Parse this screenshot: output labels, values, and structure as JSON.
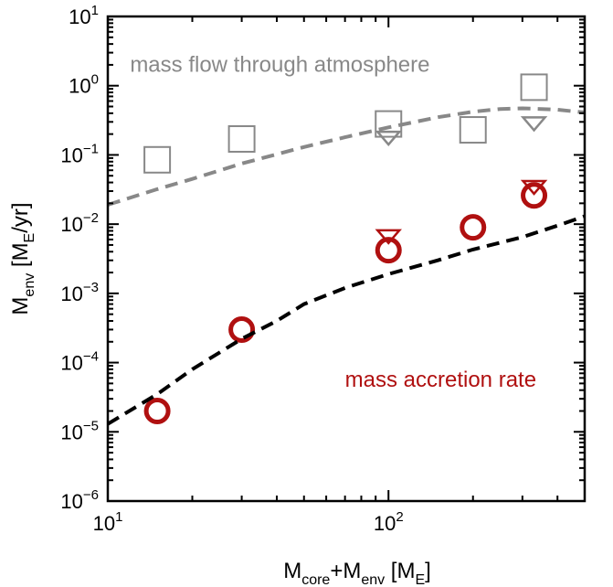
{
  "chart_data": {
    "type": "scatter",
    "title": "",
    "xlabel": {
      "base": "M",
      "sub": "core",
      "mid": "+M",
      "sub2": "env",
      "tail": " [M",
      "sub3": "E",
      "end": "]"
    },
    "ylabel": {
      "base": "M",
      "sub": "env",
      "tail": " [M",
      "sub2": "E",
      "end": "/yr]"
    },
    "x_scale": "log",
    "y_scale": "log",
    "xlim": [
      10,
      500
    ],
    "ylim": [
      1e-06,
      10
    ],
    "x_ticks": [
      {
        "value": 10,
        "base": "10",
        "exp": "1"
      },
      {
        "value": 100,
        "base": "10",
        "exp": "2"
      }
    ],
    "y_ticks": [
      {
        "value": 1e-06,
        "base": "10",
        "exp": "−6"
      },
      {
        "value": 1e-05,
        "base": "10",
        "exp": "−5"
      },
      {
        "value": 0.0001,
        "base": "10",
        "exp": "−4"
      },
      {
        "value": 0.001,
        "base": "10",
        "exp": "−3"
      },
      {
        "value": 0.01,
        "base": "10",
        "exp": "−2"
      },
      {
        "value": 0.1,
        "base": "10",
        "exp": "−1"
      },
      {
        "value": 1,
        "base": "10",
        "exp": "0"
      },
      {
        "value": 10,
        "base": "10",
        "exp": "1"
      }
    ],
    "grid": false,
    "annotations": [
      {
        "text": "mass flow through atmosphere",
        "color": "#888888",
        "x": 12,
        "y": 1.6
      },
      {
        "text": "mass accretion rate",
        "color": "#b01010",
        "x": 70,
        "y": 4.5e-05
      }
    ],
    "series": [
      {
        "marker": "square",
        "color": "#888888",
        "x": [
          15,
          30,
          100,
          200,
          330
        ],
        "y": [
          0.085,
          0.17,
          0.28,
          0.23,
          0.95
        ]
      },
      {
        "marker": "triangle-down",
        "color": "#888888",
        "x": [
          100,
          330
        ],
        "y": [
          0.18,
          0.29
        ]
      },
      {
        "marker": "circle",
        "color": "#b01010",
        "x": [
          15,
          30,
          100,
          200,
          330
        ],
        "y": [
          2e-05,
          0.0003,
          0.0042,
          0.009,
          0.026
        ]
      },
      {
        "marker": "triangle-down",
        "color": "#b01010",
        "x": [
          100,
          330
        ],
        "y": [
          0.0068,
          0.035
        ]
      },
      {
        "type": "line",
        "style": "dashed",
        "color": "#888888",
        "x": [
          10,
          15,
          20,
          30,
          50,
          70,
          100,
          150,
          200,
          250,
          300,
          350,
          400,
          500
        ],
        "y": [
          0.019,
          0.032,
          0.045,
          0.075,
          0.13,
          0.18,
          0.25,
          0.35,
          0.42,
          0.46,
          0.47,
          0.46,
          0.45,
          0.41
        ]
      },
      {
        "type": "line",
        "style": "dashed",
        "color": "#000000",
        "x": [
          10,
          15,
          20,
          30,
          40,
          50,
          70,
          100,
          150,
          200,
          300,
          400,
          500
        ],
        "y": [
          1.3e-05,
          3.5e-05,
          8e-05,
          0.00022,
          0.0004,
          0.0007,
          0.0012,
          0.0019,
          0.003,
          0.0043,
          0.0065,
          0.0095,
          0.013
        ]
      }
    ]
  }
}
